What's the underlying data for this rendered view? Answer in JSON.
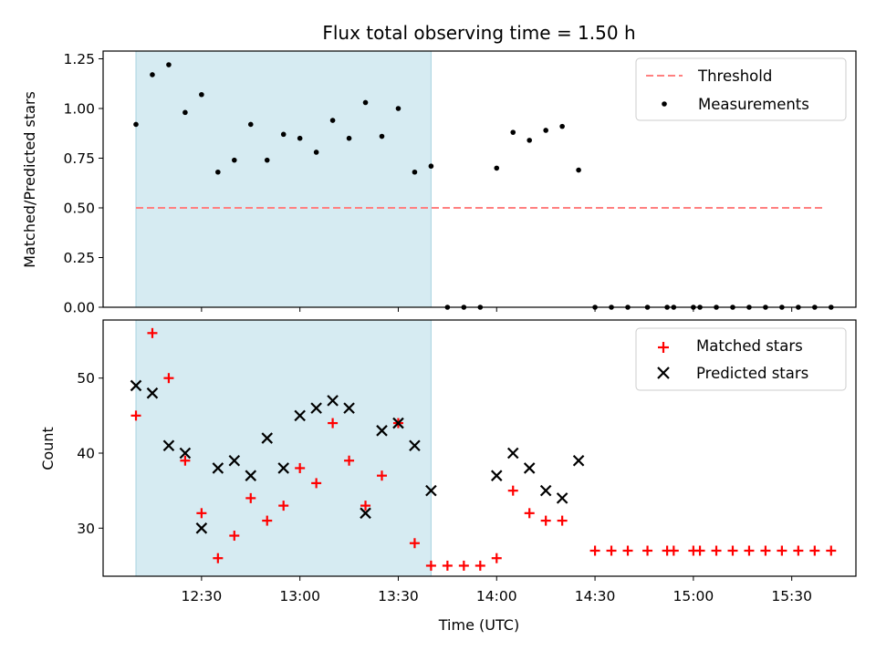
{
  "chart_data": [
    {
      "type": "scatter",
      "title": "Flux total observing time = 1.50 h",
      "xlabel": "",
      "ylabel": "Matched/Predicted stars",
      "ylim": [
        0,
        1.28
      ],
      "yticks": [
        "0.00",
        "0.25",
        "0.50",
        "0.75",
        "1.00",
        "1.25"
      ],
      "legend_position": "top-right",
      "shaded_region": {
        "x_start": "12:10",
        "x_end": "13:40",
        "color": "#add8e6"
      },
      "threshold": {
        "name": "Threshold",
        "value": 0.5,
        "x_start": "12:10",
        "x_end": "15:40",
        "color": "#ff8080",
        "style": "dashed"
      },
      "series": [
        {
          "name": "Measurements",
          "marker": "dot",
          "color": "#000000",
          "x": [
            "12:10",
            "12:15",
            "12:20",
            "12:25",
            "12:30",
            "12:35",
            "12:40",
            "12:45",
            "12:50",
            "12:55",
            "13:00",
            "13:05",
            "13:10",
            "13:15",
            "13:20",
            "13:25",
            "13:30",
            "13:35",
            "13:40",
            "13:45",
            "13:50",
            "13:55",
            "14:00",
            "14:05",
            "14:10",
            "14:15",
            "14:20",
            "14:25",
            "14:30",
            "14:35",
            "14:40",
            "14:46",
            "14:52",
            "14:54",
            "15:00",
            "15:02",
            "15:07",
            "15:12",
            "15:17",
            "15:22",
            "15:27",
            "15:32",
            "15:37",
            "15:42"
          ],
          "y": [
            0.92,
            1.17,
            1.22,
            0.98,
            1.07,
            0.68,
            0.74,
            0.92,
            0.74,
            0.87,
            0.85,
            0.78,
            0.94,
            0.85,
            1.03,
            0.86,
            1.0,
            0.68,
            0.71,
            0,
            0,
            0,
            0.7,
            0.88,
            0.84,
            0.89,
            0.91,
            0.69,
            0,
            0,
            0,
            0,
            0,
            0,
            0,
            0,
            0,
            0,
            0,
            0,
            0,
            0,
            0,
            0
          ]
        }
      ]
    },
    {
      "type": "scatter",
      "title": "",
      "xlabel": "Time (UTC)",
      "ylabel": "Count",
      "ylim": [
        23.5,
        57
      ],
      "yticks": [
        "30",
        "40",
        "50"
      ],
      "xticks": [
        "12:30",
        "13:00",
        "13:30",
        "14:00",
        "14:30",
        "15:00",
        "15:30"
      ],
      "legend_position": "top-right",
      "shaded_region": {
        "x_start": "12:10",
        "x_end": "13:40",
        "color": "#add8e6"
      },
      "series": [
        {
          "name": "Matched stars",
          "marker": "plus",
          "color": "#ff0000",
          "x": [
            "12:10",
            "12:15",
            "12:20",
            "12:25",
            "12:30",
            "12:35",
            "12:40",
            "12:45",
            "12:50",
            "12:55",
            "13:00",
            "13:05",
            "13:10",
            "13:15",
            "13:20",
            "13:25",
            "13:30",
            "13:35",
            "13:40",
            "13:45",
            "13:50",
            "13:55",
            "14:00",
            "14:05",
            "14:10",
            "14:15",
            "14:20",
            "14:30",
            "14:35",
            "14:40",
            "14:46",
            "14:52",
            "14:54",
            "15:00",
            "15:02",
            "15:07",
            "15:12",
            "15:17",
            "15:22",
            "15:27",
            "15:32",
            "15:37",
            "15:42"
          ],
          "y": [
            45,
            56,
            50,
            39,
            32,
            26,
            29,
            34,
            31,
            33,
            38,
            36,
            44,
            39,
            33,
            37,
            44,
            28,
            25,
            25,
            25,
            25,
            26,
            35,
            32,
            31,
            31,
            27,
            27,
            27,
            27,
            27,
            27,
            27,
            27,
            27,
            27,
            27,
            27,
            27,
            27,
            27,
            27
          ]
        },
        {
          "name": "Predicted stars",
          "marker": "x",
          "color": "#000000",
          "x": [
            "12:10",
            "12:15",
            "12:20",
            "12:25",
            "12:30",
            "12:35",
            "12:40",
            "12:45",
            "12:50",
            "12:55",
            "13:00",
            "13:05",
            "13:10",
            "13:15",
            "13:20",
            "13:25",
            "13:30",
            "13:35",
            "13:40",
            "14:00",
            "14:05",
            "14:10",
            "14:15",
            "14:20",
            "14:25"
          ],
          "y": [
            49,
            48,
            41,
            40,
            30,
            38,
            39,
            37,
            42,
            38,
            45,
            46,
            47,
            46,
            32,
            43,
            44,
            41,
            35,
            37,
            40,
            38,
            35,
            34,
            39
          ]
        }
      ]
    }
  ]
}
